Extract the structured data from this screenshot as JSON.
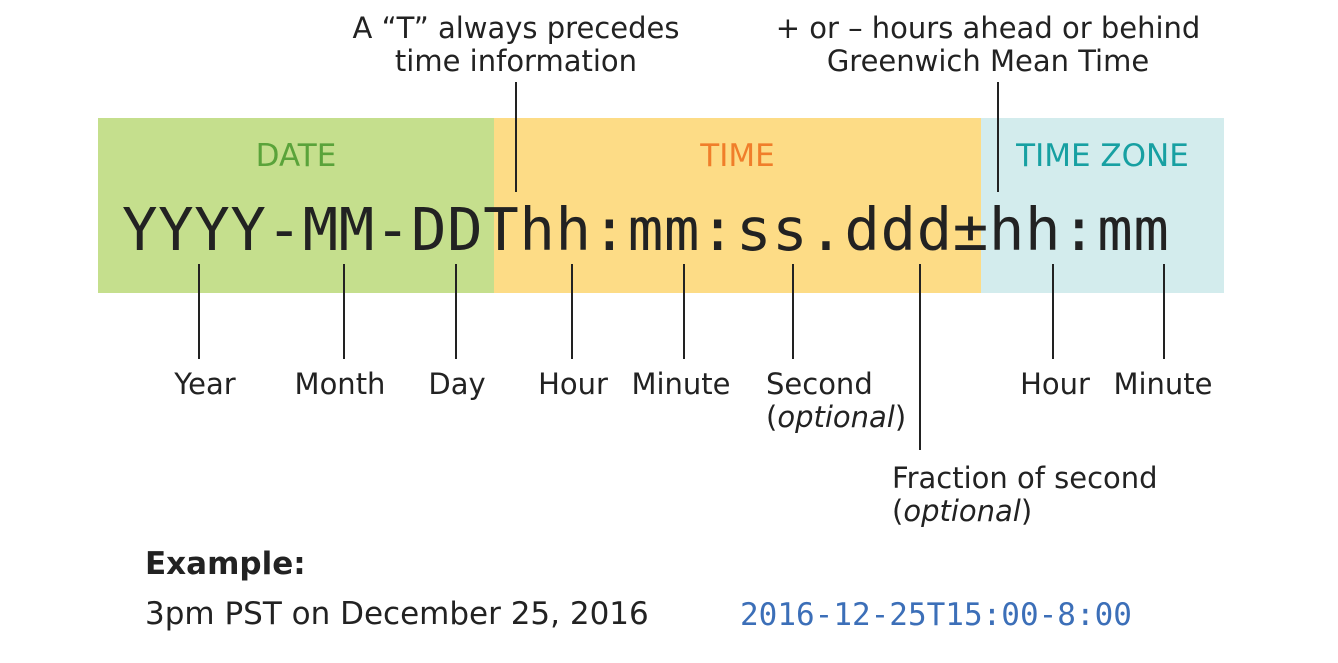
{
  "sections": {
    "date": {
      "title": "DATE",
      "color": "#c5df8d",
      "title_color": "#5aa33a"
    },
    "time": {
      "title": "TIME",
      "color": "#fddc86",
      "title_color": "#f07e2a"
    },
    "timezone": {
      "title": "TIME ZONE",
      "color": "#d3eced",
      "title_color": "#17a0a2"
    }
  },
  "format_string": "YYYY-MM-DDThh:mm:ss.ddd±hh:mm",
  "notes": {
    "t_prefix": [
      "A “T” always precedes",
      "time information"
    ],
    "offset": [
      "+ or – hours ahead or behind",
      "Greenwich Mean Time"
    ]
  },
  "labels": {
    "year": "Year",
    "month": "Month",
    "day": "Day",
    "hour": "Hour",
    "minute": "Minute",
    "second": "Second",
    "second_optional": "optional",
    "fraction": "Fraction of second",
    "fraction_optional": "optional",
    "tz_hour": "Hour",
    "tz_minute": "Minute"
  },
  "example": {
    "title": "Example:",
    "description": "3pm PST on December 25, 2016",
    "value": "2016-12-25T15:00-8:00",
    "value_color": "#3c6fb8"
  }
}
